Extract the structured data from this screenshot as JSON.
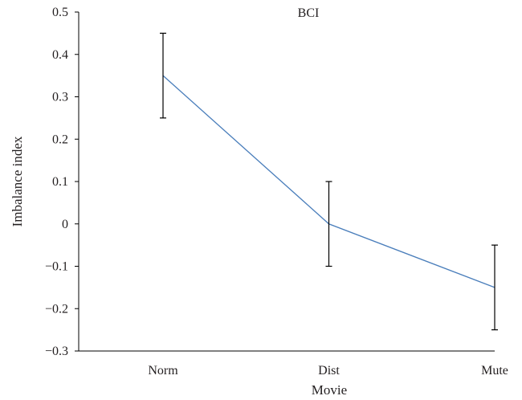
{
  "chart_data": {
    "type": "line",
    "title": "BCI",
    "xlabel": "Movie",
    "ylabel": "Imbalance index",
    "categories": [
      "Norm",
      "Dist",
      "Mute"
    ],
    "series": [
      {
        "values": [
          0.35,
          0.0,
          -0.15
        ],
        "error": [
          0.1,
          0.1,
          0.1
        ],
        "color": "#4a7ebb"
      }
    ],
    "ylim": [
      -0.3,
      0.5
    ],
    "yticks": [
      0.5,
      0.4,
      0.3,
      0.2,
      0.1,
      0,
      -0.1,
      -0.2,
      -0.3
    ],
    "ytick_labels": [
      "0.5",
      "0.4",
      "0.3",
      "0.2",
      "0.1",
      "0",
      "−0.1",
      "−0.2",
      "−0.3"
    ],
    "grid": false,
    "legend": "none",
    "error_bar_color": "#000000",
    "axis_color": "#000000"
  }
}
